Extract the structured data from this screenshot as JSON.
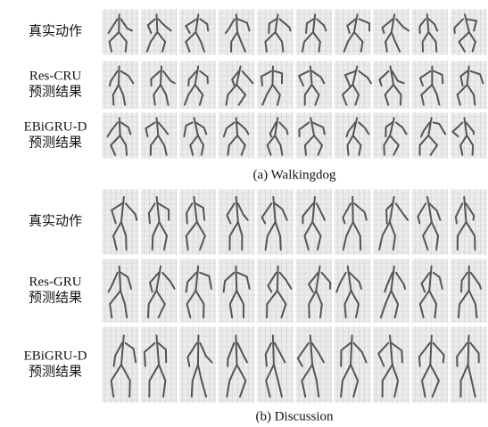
{
  "panels": [
    {
      "caption": "(a) Walkingdog",
      "rows": [
        {
          "label": [
            "真实动作"
          ]
        },
        {
          "label": [
            "Res-CRU",
            "预测结果"
          ]
        },
        {
          "label": [
            "EBiGRU-D",
            "预测结果"
          ]
        }
      ]
    },
    {
      "caption": "(b) Discussion",
      "rows": [
        {
          "label": [
            "真实动作"
          ]
        },
        {
          "label": [
            "Res-GRU",
            "预测结果"
          ]
        },
        {
          "label": [
            "EBiGRU-D",
            "预测结果"
          ]
        }
      ]
    }
  ]
}
